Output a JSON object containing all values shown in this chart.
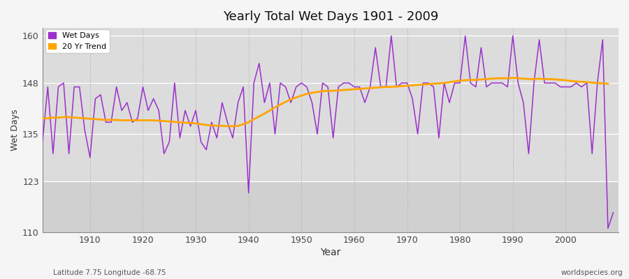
{
  "title": "Yearly Total Wet Days 1901 - 2009",
  "xlabel": "Year",
  "ylabel": "Wet Days",
  "subtitle": "Latitude 7.75 Longitude -68.75",
  "watermark": "worldspecies.org",
  "wet_days_color": "#9B30CC",
  "trend_color": "#FFA500",
  "plot_bg_color": "#DCDCDC",
  "fig_bg_color": "#F5F5F5",
  "ylim": [
    110,
    162
  ],
  "yticks": [
    110,
    123,
    135,
    148,
    160
  ],
  "xticks": [
    1910,
    1920,
    1930,
    1940,
    1950,
    1960,
    1970,
    1980,
    1990,
    2000
  ],
  "xlim": [
    1901,
    2010
  ],
  "years": [
    1901,
    1902,
    1903,
    1904,
    1905,
    1906,
    1907,
    1908,
    1909,
    1910,
    1911,
    1912,
    1913,
    1914,
    1915,
    1916,
    1917,
    1918,
    1919,
    1920,
    1921,
    1922,
    1923,
    1924,
    1925,
    1926,
    1927,
    1928,
    1929,
    1930,
    1931,
    1932,
    1933,
    1934,
    1935,
    1936,
    1937,
    1938,
    1939,
    1940,
    1941,
    1942,
    1943,
    1944,
    1945,
    1946,
    1947,
    1948,
    1949,
    1950,
    1951,
    1952,
    1953,
    1954,
    1955,
    1956,
    1957,
    1958,
    1959,
    1960,
    1961,
    1962,
    1963,
    1964,
    1965,
    1966,
    1967,
    1968,
    1969,
    1970,
    1971,
    1972,
    1973,
    1974,
    1975,
    1976,
    1977,
    1978,
    1979,
    1980,
    1981,
    1982,
    1983,
    1984,
    1985,
    1986,
    1987,
    1988,
    1989,
    1990,
    1991,
    1992,
    1993,
    1994,
    1995,
    1996,
    1997,
    1998,
    1999,
    2000,
    2001,
    2002,
    2003,
    2004,
    2005,
    2006,
    2007,
    2008,
    2009
  ],
  "wet_days": [
    133,
    147,
    130,
    147,
    148,
    130,
    147,
    147,
    136,
    129,
    144,
    145,
    138,
    138,
    147,
    141,
    143,
    138,
    139,
    147,
    141,
    144,
    141,
    130,
    133,
    148,
    134,
    141,
    137,
    141,
    133,
    131,
    138,
    134,
    143,
    138,
    134,
    143,
    147,
    120,
    148,
    153,
    143,
    148,
    135,
    148,
    147,
    143,
    147,
    148,
    147,
    143,
    135,
    148,
    147,
    134,
    147,
    148,
    148,
    147,
    147,
    143,
    147,
    157,
    147,
    147,
    160,
    147,
    148,
    148,
    144,
    135,
    148,
    148,
    147,
    134,
    148,
    143,
    148,
    148,
    160,
    148,
    147,
    157,
    147,
    148,
    148,
    148,
    147,
    160,
    148,
    143,
    130,
    148,
    159,
    148,
    148,
    148,
    147,
    147,
    147,
    148,
    147,
    148,
    130,
    148,
    159,
    111,
    115
  ],
  "trend": [
    139.0,
    139.0,
    139.2,
    139.2,
    139.3,
    139.3,
    139.2,
    139.1,
    139.0,
    138.9,
    138.8,
    138.7,
    138.6,
    138.6,
    138.6,
    138.5,
    138.5,
    138.5,
    138.5,
    138.5,
    138.5,
    138.5,
    138.4,
    138.3,
    138.2,
    138.1,
    138.0,
    137.9,
    137.8,
    137.7,
    137.5,
    137.3,
    137.2,
    137.1,
    137.1,
    137.0,
    137.0,
    137.1,
    137.5,
    138.0,
    138.8,
    139.5,
    140.2,
    141.0,
    141.8,
    142.5,
    143.2,
    143.8,
    144.3,
    144.8,
    145.2,
    145.5,
    145.7,
    145.9,
    146.0,
    146.0,
    146.1,
    146.2,
    146.3,
    146.4,
    146.5,
    146.6,
    146.7,
    146.8,
    146.9,
    147.0,
    147.0,
    147.1,
    147.2,
    147.3,
    147.4,
    147.5,
    147.6,
    147.7,
    147.8,
    147.9,
    148.0,
    148.2,
    148.4,
    148.6,
    148.7,
    148.8,
    148.8,
    148.9,
    149.0,
    149.1,
    149.2,
    149.2,
    149.2,
    149.3,
    149.2,
    149.1,
    149.0,
    149.0,
    149.1,
    149.0,
    149.0,
    148.9,
    148.8,
    148.7,
    148.5,
    148.4,
    148.3,
    148.2,
    148.1,
    148.0,
    147.9,
    147.8,
    null
  ]
}
